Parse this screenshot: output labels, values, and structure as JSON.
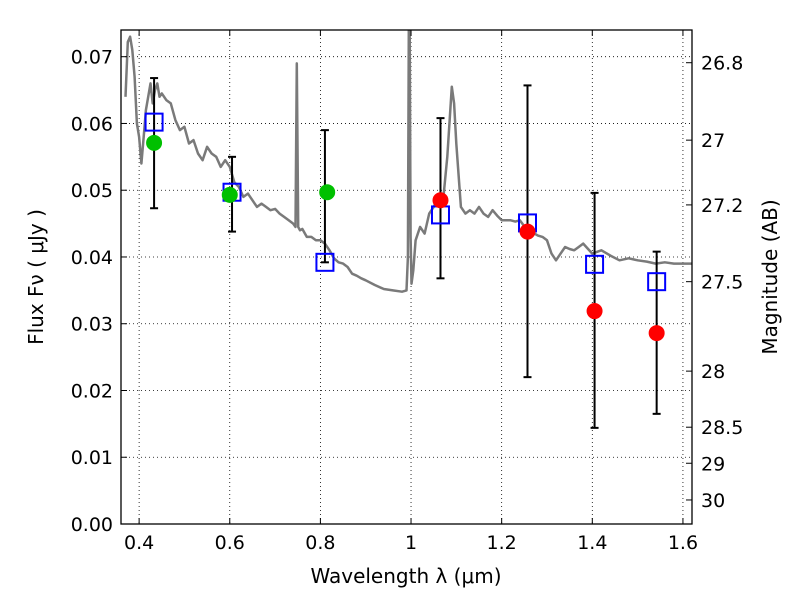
{
  "chart_data": {
    "type": "scatter",
    "xlabel": "Wavelength  λ (μm)",
    "ylabel": "Flux  Fν  ( μJy )",
    "y2label": "Magnitude (AB)",
    "xlim": [
      0.36,
      1.62
    ],
    "ylim": [
      0.0,
      0.074
    ],
    "grid": true,
    "x_ticks": [
      0.4,
      0.6,
      0.8,
      1.0,
      1.2,
      1.4,
      1.6
    ],
    "x_tick_labels": [
      "0.4",
      "0.6",
      "0.8",
      "1",
      "1.2",
      "1.4",
      "1.6"
    ],
    "y_ticks": [
      0.0,
      0.01,
      0.02,
      0.03,
      0.04,
      0.05,
      0.06,
      0.07
    ],
    "y_tick_labels": [
      "0.00",
      "0.01",
      "0.02",
      "0.03",
      "0.04",
      "0.05",
      "0.06",
      "0.07"
    ],
    "magnitude_ticks": [
      {
        "label": "26.8",
        "flux": 0.0691
      },
      {
        "label": "27",
        "flux": 0.0575
      },
      {
        "label": "27.2",
        "flux": 0.0478
      },
      {
        "label": "27.5",
        "flux": 0.0363
      },
      {
        "label": "28",
        "flux": 0.0229
      },
      {
        "label": "28.5",
        "flux": 0.0145
      },
      {
        "label": "29",
        "flux": 0.0091
      },
      {
        "label": "30",
        "flux": 0.0036
      }
    ],
    "series": [
      {
        "type": "line",
        "color": "#7a7a7a",
        "x": [
          0.37,
          0.375,
          0.38,
          0.385,
          0.39,
          0.395,
          0.4,
          0.405,
          0.41,
          0.415,
          0.42,
          0.425,
          0.43,
          0.435,
          0.44,
          0.445,
          0.45,
          0.46,
          0.47,
          0.48,
          0.49,
          0.5,
          0.51,
          0.52,
          0.53,
          0.54,
          0.55,
          0.56,
          0.57,
          0.58,
          0.59,
          0.6,
          0.61,
          0.62,
          0.63,
          0.64,
          0.65,
          0.66,
          0.67,
          0.68,
          0.69,
          0.7,
          0.71,
          0.72,
          0.73,
          0.74,
          0.745,
          0.748,
          0.751,
          0.755,
          0.76,
          0.77,
          0.78,
          0.79,
          0.8,
          0.81,
          0.82,
          0.83,
          0.84,
          0.85,
          0.86,
          0.87,
          0.88,
          0.89,
          0.9,
          0.92,
          0.94,
          0.96,
          0.98,
          0.99,
          0.993,
          0.995,
          0.997,
          0.999,
          1.001,
          1.005,
          1.01,
          1.02,
          1.03,
          1.04,
          1.05,
          1.06,
          1.07,
          1.08,
          1.09,
          1.095,
          1.1,
          1.11,
          1.12,
          1.13,
          1.14,
          1.15,
          1.16,
          1.17,
          1.18,
          1.19,
          1.2,
          1.21,
          1.22,
          1.23,
          1.24,
          1.25,
          1.26,
          1.27,
          1.28,
          1.29,
          1.3,
          1.31,
          1.32,
          1.33,
          1.34,
          1.35,
          1.36,
          1.37,
          1.38,
          1.4,
          1.42,
          1.44,
          1.46,
          1.48,
          1.5,
          1.52,
          1.54,
          1.56,
          1.58,
          1.6,
          1.62
        ],
        "y": [
          0.064,
          0.0722,
          0.073,
          0.071,
          0.067,
          0.06,
          0.058,
          0.054,
          0.058,
          0.062,
          0.064,
          0.066,
          0.063,
          0.065,
          0.066,
          0.064,
          0.0645,
          0.0635,
          0.063,
          0.0605,
          0.059,
          0.0595,
          0.057,
          0.0575,
          0.0555,
          0.0545,
          0.0565,
          0.0555,
          0.055,
          0.0535,
          0.0545,
          0.0535,
          0.0512,
          0.0505,
          0.049,
          0.0495,
          0.0485,
          0.0475,
          0.048,
          0.0475,
          0.047,
          0.0472,
          0.0465,
          0.046,
          0.0455,
          0.045,
          0.0445,
          0.069,
          0.0445,
          0.044,
          0.0442,
          0.043,
          0.043,
          0.0425,
          0.0425,
          0.042,
          0.041,
          0.0398,
          0.0392,
          0.039,
          0.0385,
          0.0375,
          0.0372,
          0.0368,
          0.0365,
          0.0358,
          0.0352,
          0.035,
          0.0348,
          0.035,
          0.04,
          0.074,
          0.074,
          0.043,
          0.036,
          0.038,
          0.0425,
          0.0445,
          0.0435,
          0.0465,
          0.0475,
          0.049,
          0.048,
          0.055,
          0.0655,
          0.063,
          0.057,
          0.0475,
          0.0465,
          0.047,
          0.0465,
          0.0475,
          0.0465,
          0.046,
          0.047,
          0.0462,
          0.0455,
          0.0455,
          0.0455,
          0.0453,
          0.0455,
          0.0446,
          0.044,
          0.0436,
          0.0432,
          0.043,
          0.0425,
          0.0405,
          0.0395,
          0.0405,
          0.0415,
          0.0412,
          0.041,
          0.0415,
          0.042,
          0.0405,
          0.041,
          0.0402,
          0.0395,
          0.0398,
          0.0395,
          0.0393,
          0.039,
          0.0392,
          0.039,
          0.039,
          0.039
        ]
      },
      {
        "type": "errorbar",
        "color": "#000000",
        "x": [
          0.433,
          0.605,
          0.81,
          1.065,
          1.257,
          1.405,
          1.542
        ],
        "y": [
          0.0602,
          0.0497,
          0.0392,
          0.0463,
          0.0451,
          0.0389,
          0.0363
        ],
        "yerr_low": [
          0.0129,
          0.0059,
          0.0,
          0.0095,
          0.0231,
          0.0245,
          0.0198
        ],
        "yerr_high": [
          0.0066,
          0.0053,
          0.0198,
          0.0145,
          0.0206,
          0.0107,
          0.0045
        ]
      },
      {
        "type": "marker",
        "marker": "square-open",
        "color": "#0000ff",
        "x": [
          0.433,
          0.605,
          0.81,
          1.065,
          1.257,
          1.405,
          1.542
        ],
        "y": [
          0.0602,
          0.0497,
          0.0392,
          0.0463,
          0.0451,
          0.0389,
          0.0363
        ]
      },
      {
        "type": "marker",
        "marker": "circle",
        "color": "#00c000",
        "x": [
          0.433,
          0.6,
          0.815
        ],
        "y": [
          0.0571,
          0.0493,
          0.0497
        ]
      },
      {
        "type": "marker",
        "marker": "circle",
        "color": "#ff0000",
        "x": [
          1.065,
          1.257,
          1.405,
          1.542
        ],
        "y": [
          0.0485,
          0.0438,
          0.0319,
          0.0286
        ]
      }
    ]
  }
}
